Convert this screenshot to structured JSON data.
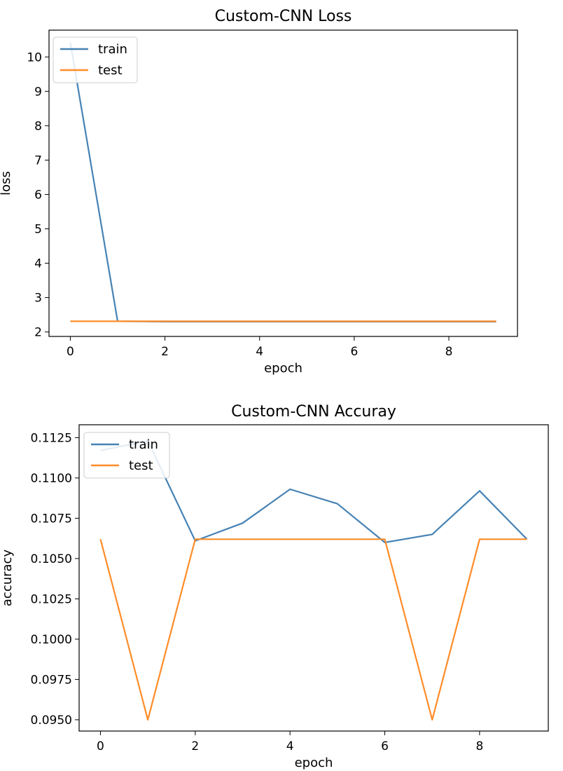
{
  "chart_data": [
    {
      "type": "line",
      "title": "Custom-CNN Loss",
      "xlabel": "epoch",
      "ylabel": "loss",
      "x": [
        0,
        1,
        2,
        3,
        4,
        5,
        6,
        7,
        8,
        9
      ],
      "xlim": [
        -0.45,
        9.45
      ],
      "ylim": [
        1.87,
        10.78
      ],
      "xticks": [
        "0",
        "2",
        "4",
        "6",
        "8"
      ],
      "yticks": [
        "2",
        "3",
        "4",
        "5",
        "6",
        "7",
        "8",
        "9",
        "10"
      ],
      "legend_position": "upper left",
      "grid": false,
      "series": [
        {
          "name": "train",
          "color": "#4682b4",
          "values": [
            10.42,
            2.31,
            2.3,
            2.3,
            2.3,
            2.3,
            2.3,
            2.3,
            2.3,
            2.3
          ]
        },
        {
          "name": "test",
          "color": "#ff8c28",
          "values": [
            2.31,
            2.31,
            2.31,
            2.31,
            2.31,
            2.31,
            2.31,
            2.31,
            2.31,
            2.31
          ]
        }
      ]
    },
    {
      "type": "line",
      "title": "Custom-CNN Accuray",
      "xlabel": "epoch",
      "ylabel": "accuracy",
      "x": [
        0,
        1,
        2,
        3,
        4,
        5,
        6,
        7,
        8,
        9
      ],
      "xlim": [
        -0.45,
        9.45
      ],
      "ylim": [
        0.0943,
        0.1133
      ],
      "xticks": [
        "0",
        "2",
        "4",
        "6",
        "8"
      ],
      "yticks": [
        "0.0950",
        "0.0975",
        "0.1000",
        "0.1025",
        "0.1050",
        "0.1075",
        "0.1100",
        "0.1125"
      ],
      "legend_position": "upper left",
      "grid": false,
      "series": [
        {
          "name": "train",
          "color": "#4682b4",
          "values": [
            0.1117,
            0.1123,
            0.1061,
            0.1072,
            0.1093,
            0.1084,
            0.106,
            0.1065,
            0.1092,
            0.1062
          ]
        },
        {
          "name": "test",
          "color": "#ff8c28",
          "values": [
            0.1062,
            0.095,
            0.1062,
            0.1062,
            0.1062,
            0.1062,
            0.1062,
            0.095,
            0.1062,
            0.1062
          ]
        }
      ]
    }
  ]
}
